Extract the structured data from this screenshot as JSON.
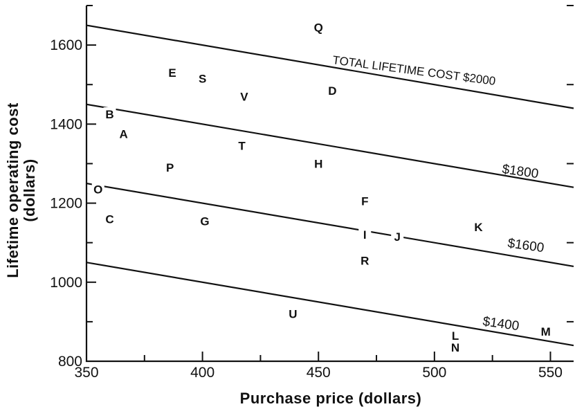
{
  "chart_data": {
    "type": "scatter",
    "title": "",
    "xlabel": "Purchase price (dollars)",
    "ylabel_line1": "Lifetime operating cost",
    "ylabel_line2": "(dollars)",
    "xlim": [
      350,
      560
    ],
    "ylim": [
      800,
      1700
    ],
    "x_ticks": [
      350,
      400,
      450,
      500,
      550
    ],
    "y_ticks": [
      800,
      1000,
      1200,
      1400,
      1600
    ],
    "x_tick_labels": [
      "350",
      "400",
      "450",
      "500",
      "550"
    ],
    "y_tick_labels": [
      "800",
      "1000",
      "1200",
      "1400",
      "1600"
    ],
    "points": [
      {
        "label": "Q",
        "x": 450,
        "y": 1645
      },
      {
        "label": "E",
        "x": 387,
        "y": 1530
      },
      {
        "label": "S",
        "x": 400,
        "y": 1515
      },
      {
        "label": "V",
        "x": 418,
        "y": 1470
      },
      {
        "label": "D",
        "x": 456,
        "y": 1485
      },
      {
        "label": "B",
        "x": 360,
        "y": 1425
      },
      {
        "label": "A",
        "x": 366,
        "y": 1375
      },
      {
        "label": "T",
        "x": 417,
        "y": 1345
      },
      {
        "label": "H",
        "x": 450,
        "y": 1300
      },
      {
        "label": "P",
        "x": 386,
        "y": 1290
      },
      {
        "label": "O",
        "x": 355,
        "y": 1235
      },
      {
        "label": "F",
        "x": 470,
        "y": 1205
      },
      {
        "label": "C",
        "x": 360,
        "y": 1160
      },
      {
        "label": "G",
        "x": 401,
        "y": 1155
      },
      {
        "label": "K",
        "x": 519,
        "y": 1140
      },
      {
        "label": "I",
        "x": 470,
        "y": 1120
      },
      {
        "label": "J",
        "x": 484,
        "y": 1115
      },
      {
        "label": "R",
        "x": 470,
        "y": 1055
      },
      {
        "label": "U",
        "x": 439,
        "y": 920
      },
      {
        "label": "M",
        "x": 548,
        "y": 875
      },
      {
        "label": "L",
        "x": 509,
        "y": 865
      },
      {
        "label": "N",
        "x": 509,
        "y": 835
      }
    ],
    "iso_lines": [
      {
        "total": 2000,
        "label": "TOTAL LIFETIME COST $2000"
      },
      {
        "total": 1800,
        "label": "$1800"
      },
      {
        "total": 1600,
        "label": "$1600"
      },
      {
        "total": 1400,
        "label": "$1400"
      }
    ]
  }
}
